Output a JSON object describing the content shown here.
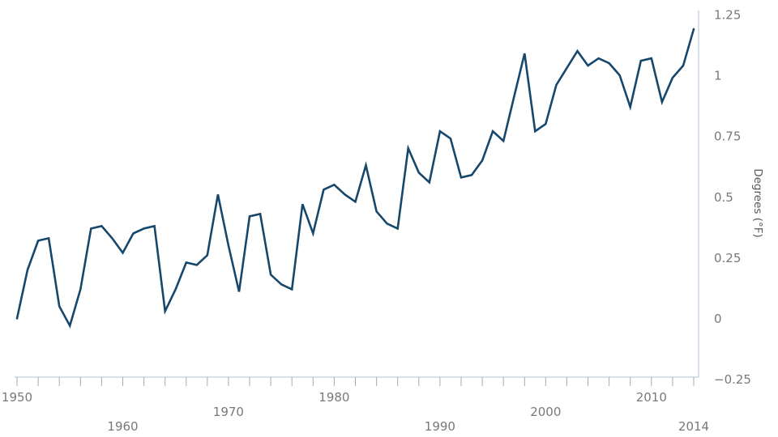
{
  "chart_data": {
    "type": "line",
    "title": "",
    "xlabel": "",
    "ylabel": "Degrees (°F)",
    "legend": "none",
    "grid": "off",
    "xlim": [
      1950,
      2014
    ],
    "ylim": [
      -0.25,
      1.25
    ],
    "line_color": "#17476b",
    "axis_color": "#c2cfe0",
    "minor_tick_color": "#a8aaad",
    "tick_label_color": "#77797c",
    "axis_title_color": "#54585b",
    "minor_tick_step_years": 2,
    "x": [
      1950,
      1951,
      1952,
      1953,
      1954,
      1955,
      1956,
      1957,
      1958,
      1959,
      1960,
      1961,
      1962,
      1963,
      1964,
      1965,
      1966,
      1967,
      1968,
      1969,
      1970,
      1971,
      1972,
      1973,
      1974,
      1975,
      1976,
      1977,
      1978,
      1979,
      1980,
      1981,
      1982,
      1983,
      1984,
      1985,
      1986,
      1987,
      1988,
      1989,
      1990,
      1991,
      1992,
      1993,
      1994,
      1995,
      1996,
      1997,
      1998,
      1999,
      2000,
      2001,
      2002,
      2003,
      2004,
      2005,
      2006,
      2007,
      2008,
      2009,
      2010,
      2011,
      2012,
      2013,
      2014
    ],
    "values": [
      0.0,
      0.2,
      0.32,
      0.33,
      0.05,
      -0.03,
      0.12,
      0.37,
      0.38,
      0.33,
      0.27,
      0.35,
      0.37,
      0.38,
      0.03,
      0.12,
      0.23,
      0.22,
      0.26,
      0.51,
      0.3,
      0.11,
      0.42,
      0.43,
      0.18,
      0.14,
      0.12,
      0.47,
      0.35,
      0.53,
      0.55,
      0.51,
      0.48,
      0.63,
      0.44,
      0.39,
      0.37,
      0.7,
      0.6,
      0.56,
      0.77,
      0.74,
      0.58,
      0.59,
      0.65,
      0.77,
      0.73,
      0.91,
      1.09,
      0.77,
      0.8,
      0.96,
      1.03,
      1.1,
      1.04,
      1.07,
      1.05,
      1.0,
      0.87,
      1.06,
      1.07,
      0.89,
      0.99,
      1.04,
      1.19
    ],
    "y_ticks": [
      {
        "label": "1.25",
        "value": 1.25
      },
      {
        "label": "1",
        "value": 1.0
      },
      {
        "label": "0.75",
        "value": 0.75
      },
      {
        "label": "0.5",
        "value": 0.5
      },
      {
        "label": "0.25",
        "value": 0.25
      },
      {
        "label": "0",
        "value": 0.0
      },
      {
        "label": "−0.25",
        "value": -0.25
      }
    ],
    "x_ticks": [
      {
        "label": "1950",
        "year": 1950,
        "row": 0
      },
      {
        "label": "1960",
        "year": 1960,
        "row": 2
      },
      {
        "label": "1970",
        "year": 1970,
        "row": 1
      },
      {
        "label": "1980",
        "year": 1980,
        "row": 0
      },
      {
        "label": "1990",
        "year": 1990,
        "row": 2
      },
      {
        "label": "2000",
        "year": 2000,
        "row": 1
      },
      {
        "label": "2010",
        "year": 2010,
        "row": 0
      },
      {
        "label": "2014",
        "year": 2014,
        "row": 2
      }
    ]
  }
}
